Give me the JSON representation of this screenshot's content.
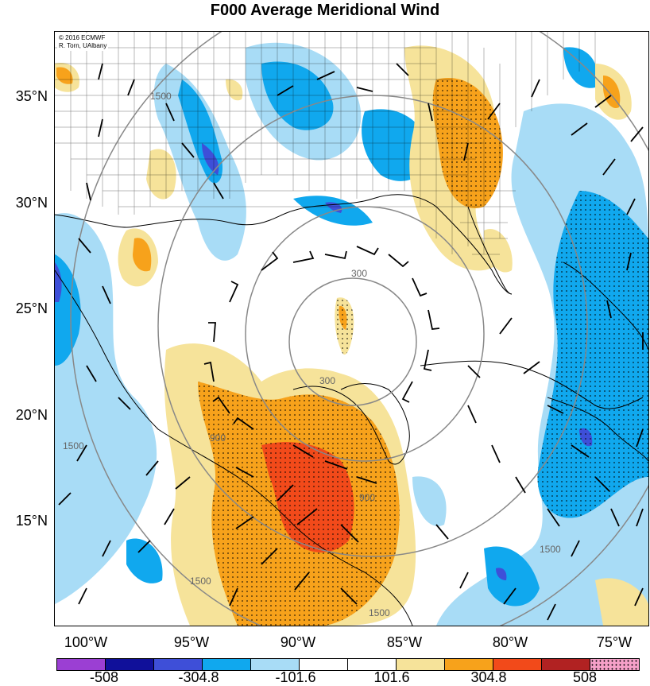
{
  "title": "F000 Average Meridional Wind",
  "credit": {
    "line1": "© 2016 ECMWF",
    "line2": "R. Torn, UAlbany"
  },
  "lat_labels": [
    "35°N",
    "30°N",
    "25°N",
    "20°N",
    "15°N"
  ],
  "lon_labels": [
    "100°W",
    "95°W",
    "90°W",
    "85°W",
    "80°W",
    "75°W"
  ],
  "colorbar": {
    "colors": [
      "#9b3fd3",
      "#10109a",
      "#3e4fd8",
      "#10a8ee",
      "#a8dcf6",
      "#ffffff",
      "#ffffff",
      "#f6e39a",
      "#f7a21b",
      "#f24a1a",
      "#b12222",
      "#f5a0c8"
    ],
    "labels": [
      "-508",
      "-304.8",
      "-101.6",
      "101.6",
      "304.8",
      "508"
    ]
  },
  "contour_labels": [
    "300",
    "300",
    "900",
    "900",
    "1500",
    "1500",
    "1500",
    "1500",
    "1500"
  ]
}
